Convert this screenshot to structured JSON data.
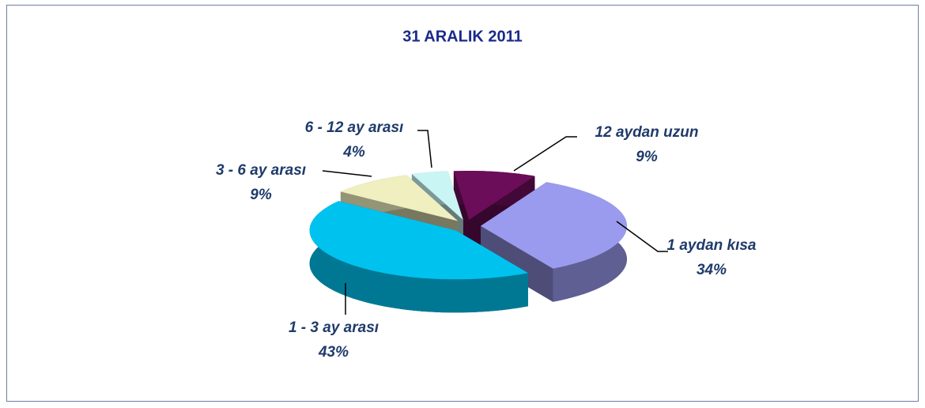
{
  "chart_data": {
    "type": "pie3d",
    "title": "31 ARALIK 2011",
    "categories": [
      "12 aydan uzun",
      "1 aydan kısa",
      "1 - 3 ay arası",
      "3 - 6 ay arası",
      "6 - 12 ay arası"
    ],
    "values": [
      9,
      34,
      43,
      9,
      4
    ],
    "value_labels": [
      "9%",
      "34%",
      "43%",
      "9%",
      "4%"
    ],
    "colors": [
      "#6b0d58",
      "#9a9aee",
      "#00c2ef",
      "#efefbf",
      "#c9f5f5"
    ]
  }
}
